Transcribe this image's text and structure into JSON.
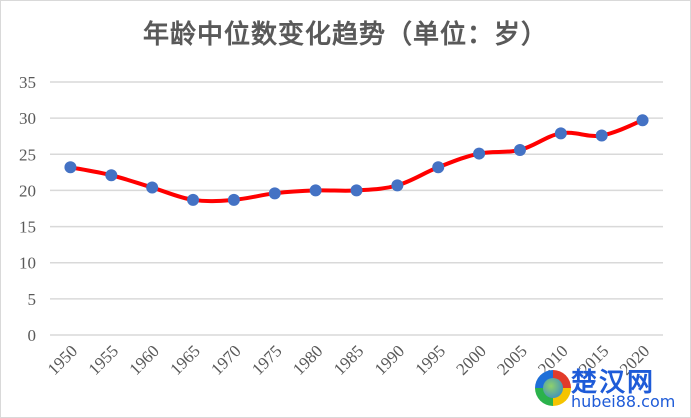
{
  "chart_data": {
    "type": "line",
    "title": "年龄中位数变化趋势（单位：岁）",
    "xlabel": "",
    "ylabel": "",
    "categories": [
      "1950",
      "1955",
      "1960",
      "1965",
      "1970",
      "1975",
      "1980",
      "1985",
      "1990",
      "1995",
      "2000",
      "2005",
      "2010",
      "2015",
      "2020"
    ],
    "series": [
      {
        "name": "年龄中位数",
        "values": [
          23.2,
          22.1,
          20.4,
          18.7,
          18.7,
          19.6,
          20.0,
          20.0,
          20.7,
          23.2,
          25.1,
          25.6,
          27.9,
          27.6,
          29.7
        ],
        "line_color": "#ff0000",
        "marker_color": "#4472c4"
      }
    ],
    "ylim": [
      0,
      35
    ],
    "yticks": [
      "0",
      "5",
      "10",
      "15",
      "20",
      "25",
      "30",
      "35"
    ],
    "grid": true,
    "legend": "none"
  },
  "watermark": {
    "cn": "楚汉网",
    "en": "hubei88.com"
  }
}
